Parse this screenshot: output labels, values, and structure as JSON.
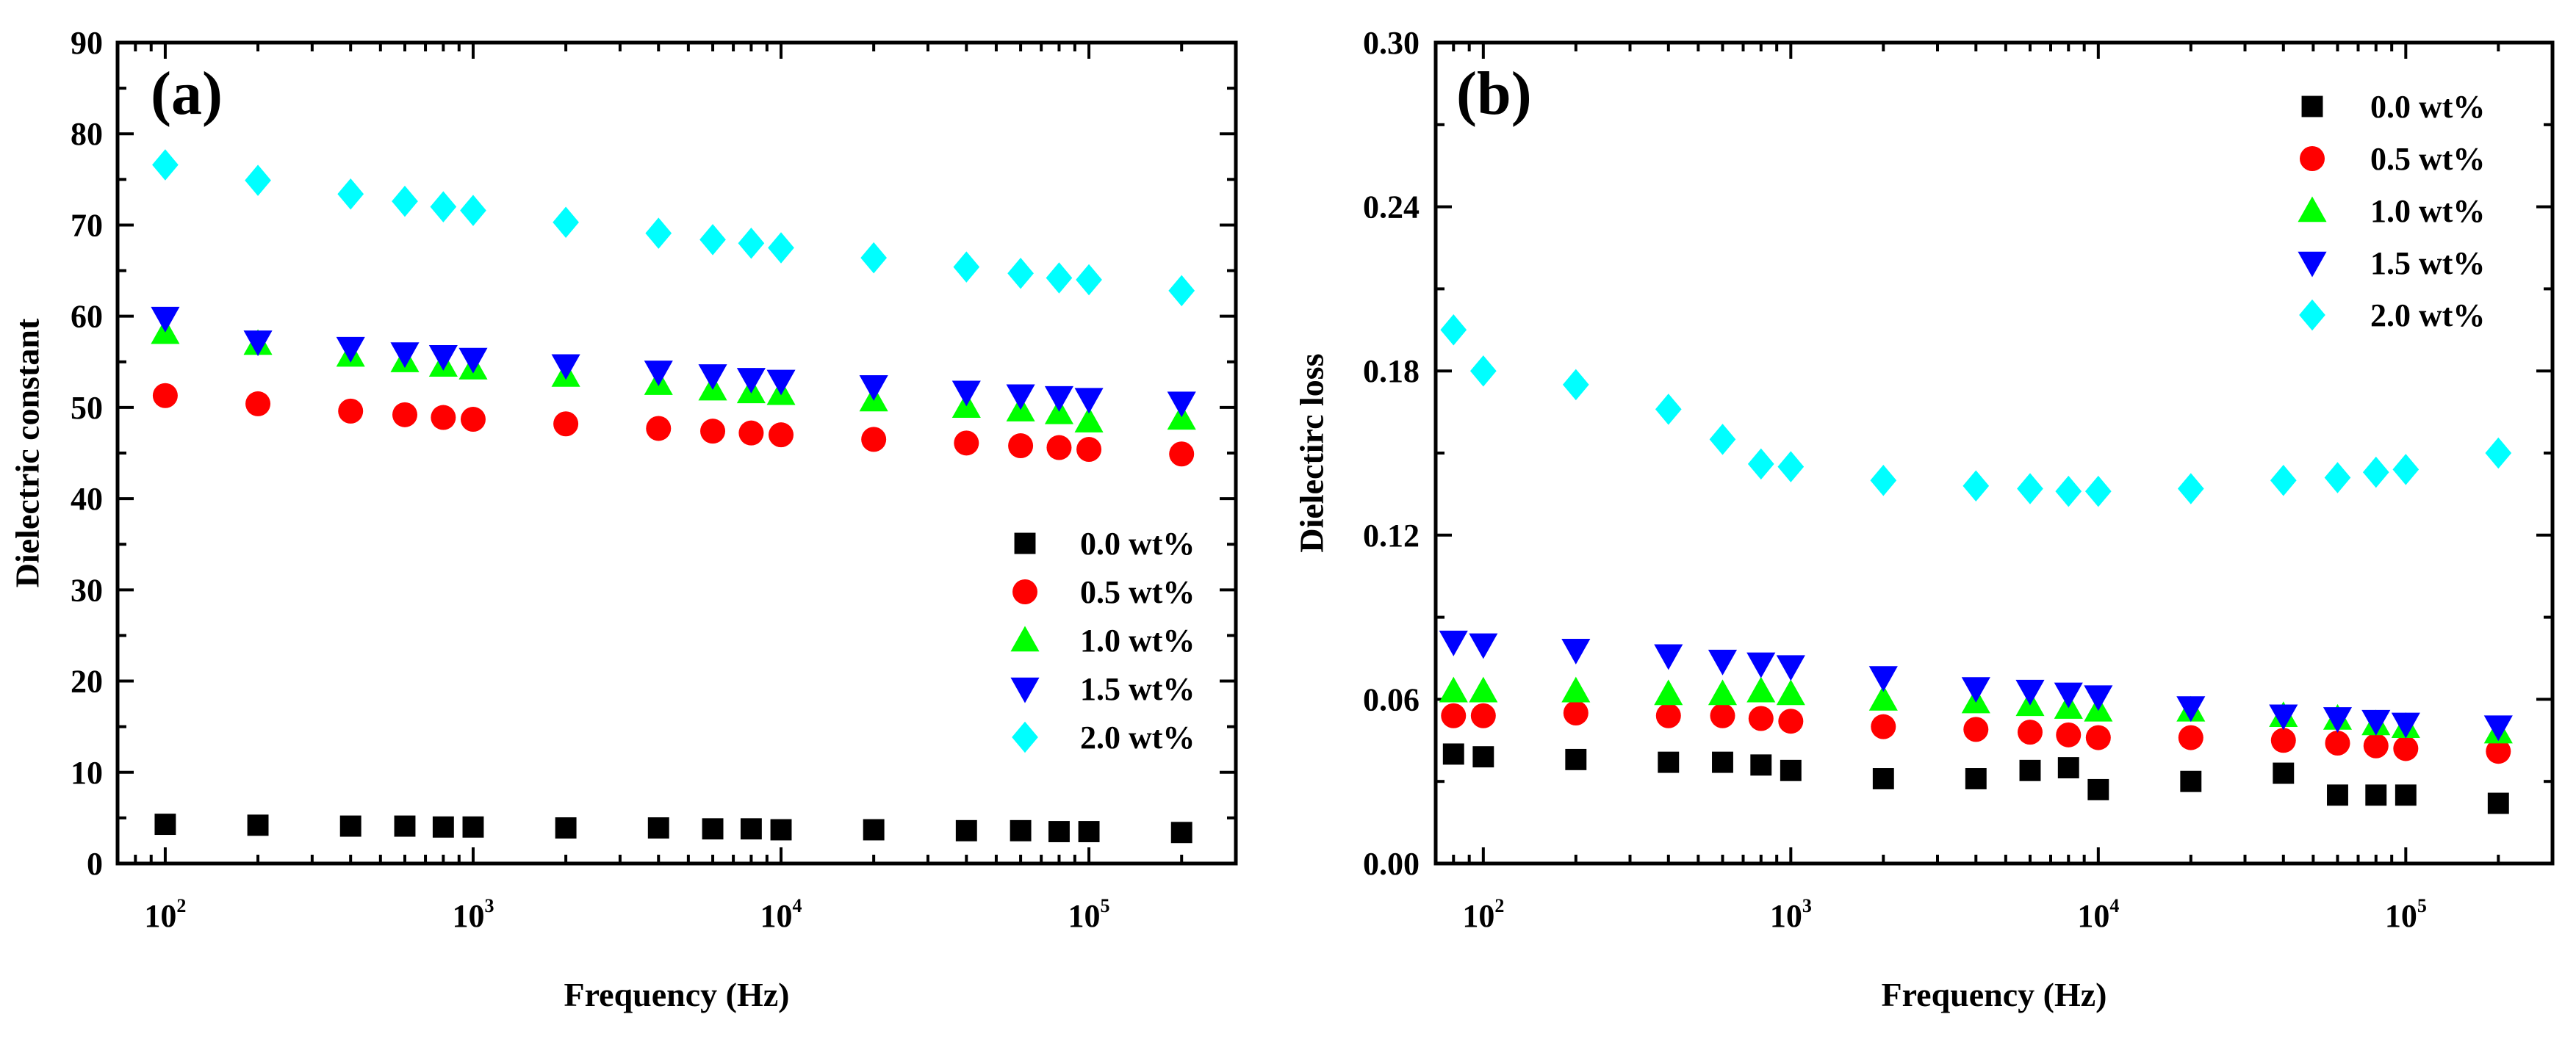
{
  "chart_data": [
    {
      "type": "scatter",
      "panel_label": "(a)",
      "xlabel": "Frequency (Hz)",
      "ylabel": "Dielectric  constant",
      "xscale": "log",
      "xlim": [
        70,
        300000
      ],
      "ylim": [
        0,
        90
      ],
      "yticks": [
        0,
        10,
        20,
        30,
        40,
        50,
        60,
        70,
        80,
        90
      ],
      "ytick_labels": [
        "0",
        "10",
        "20",
        "30",
        "40",
        "50",
        "60",
        "70",
        "80",
        "90"
      ],
      "xtick_labels": [
        {
          "base": "10",
          "exp": "2"
        },
        {
          "base": "10",
          "exp": "3"
        },
        {
          "base": "10",
          "exp": "4"
        },
        {
          "base": "10",
          "exp": "5"
        }
      ],
      "legend_position": "lower-right",
      "x": [
        100,
        200,
        400,
        600,
        800,
        1000,
        2000,
        4000,
        6000,
        8000,
        10000,
        20000,
        40000,
        60000,
        80000,
        100000,
        200000
      ],
      "series": [
        {
          "name": "0.0 wt%",
          "marker": "square",
          "color": "#000000",
          "values": [
            4.3,
            4.2,
            4.1,
            4.1,
            4.0,
            4.0,
            3.9,
            3.9,
            3.8,
            3.8,
            3.7,
            3.7,
            3.6,
            3.6,
            3.5,
            3.5,
            3.4
          ]
        },
        {
          "name": "0.5 wt%",
          "marker": "circle",
          "color": "#ff0000",
          "values": [
            51.3,
            50.4,
            49.6,
            49.2,
            48.9,
            48.7,
            48.2,
            47.7,
            47.4,
            47.2,
            47.0,
            46.5,
            46.1,
            45.8,
            45.6,
            45.4,
            44.9
          ]
        },
        {
          "name": "1.0 wt%",
          "marker": "triangle-up",
          "color": "#00ff00",
          "values": [
            58.2,
            57.0,
            55.7,
            55.1,
            54.6,
            54.3,
            53.5,
            52.6,
            52.0,
            51.7,
            51.5,
            50.8,
            50.1,
            49.7,
            49.4,
            48.5,
            48.8
          ]
        },
        {
          "name": "1.5 wt%",
          "marker": "triangle-down",
          "color": "#0000ff",
          "values": [
            59.8,
            57.2,
            56.5,
            55.9,
            55.6,
            55.3,
            54.6,
            53.9,
            53.5,
            53.1,
            52.9,
            52.3,
            51.7,
            51.3,
            51.1,
            50.9,
            50.5
          ]
        },
        {
          "name": "2.0 wt%",
          "marker": "diamond",
          "color": "#00ffff",
          "values": [
            76.6,
            74.9,
            73.4,
            72.6,
            72.0,
            71.6,
            70.3,
            69.1,
            68.4,
            68.0,
            67.5,
            66.4,
            65.4,
            64.7,
            64.2,
            64.0,
            62.8
          ]
        }
      ]
    },
    {
      "type": "scatter",
      "panel_label": "(b)",
      "xlabel": "Frequency (Hz)",
      "ylabel": "Dielectirc loss",
      "xscale": "log",
      "xlim": [
        70,
        300000
      ],
      "ylim": [
        0,
        0.3
      ],
      "yticks": [
        0,
        0.06,
        0.12,
        0.18,
        0.24,
        0.3
      ],
      "ytick_labels": [
        "0.00",
        "0.06",
        "0.12",
        "0.18",
        "0.24",
        "0.30"
      ],
      "xtick_labels": [
        {
          "base": "10",
          "exp": "2"
        },
        {
          "base": "10",
          "exp": "3"
        },
        {
          "base": "10",
          "exp": "4"
        },
        {
          "base": "10",
          "exp": "5"
        }
      ],
      "legend_position": "top-right",
      "x": [
        80,
        100,
        200,
        400,
        600,
        800,
        1000,
        2000,
        4000,
        6000,
        8000,
        10000,
        20000,
        40000,
        60000,
        80000,
        100000,
        200000
      ],
      "series": [
        {
          "name": "0.0 wt%",
          "marker": "square",
          "color": "#000000",
          "values": [
            0.04,
            0.039,
            0.038,
            0.037,
            0.037,
            0.036,
            0.034,
            0.031,
            0.031,
            0.034,
            0.035,
            0.027,
            0.03,
            0.033,
            0.025,
            0.025,
            0.025,
            0.022
          ]
        },
        {
          "name": "0.5 wt%",
          "marker": "circle",
          "color": "#ff0000",
          "values": [
            0.054,
            0.054,
            0.055,
            0.054,
            0.054,
            0.053,
            0.052,
            0.05,
            0.049,
            0.048,
            0.047,
            0.046,
            0.046,
            0.045,
            0.044,
            0.043,
            0.042,
            0.041
          ]
        },
        {
          "name": "1.0 wt%",
          "marker": "triangle-up",
          "color": "#00ff00",
          "values": [
            0.063,
            0.063,
            0.063,
            0.062,
            0.062,
            0.063,
            0.062,
            0.06,
            0.059,
            0.058,
            0.057,
            0.056,
            0.056,
            0.054,
            0.053,
            0.051,
            0.05,
            0.048
          ]
        },
        {
          "name": "1.5 wt%",
          "marker": "triangle-down",
          "color": "#0000ff",
          "values": [
            0.081,
            0.08,
            0.078,
            0.076,
            0.074,
            0.073,
            0.072,
            0.068,
            0.064,
            0.063,
            0.062,
            0.061,
            0.057,
            0.054,
            0.053,
            0.052,
            0.051,
            0.05
          ]
        },
        {
          "name": "2.0 wt%",
          "marker": "diamond",
          "color": "#00ffff",
          "values": [
            0.195,
            0.18,
            0.175,
            0.166,
            0.155,
            0.146,
            0.145,
            0.14,
            0.138,
            0.137,
            0.136,
            0.136,
            0.137,
            0.14,
            0.141,
            0.143,
            0.144,
            0.15
          ]
        }
      ]
    }
  ]
}
